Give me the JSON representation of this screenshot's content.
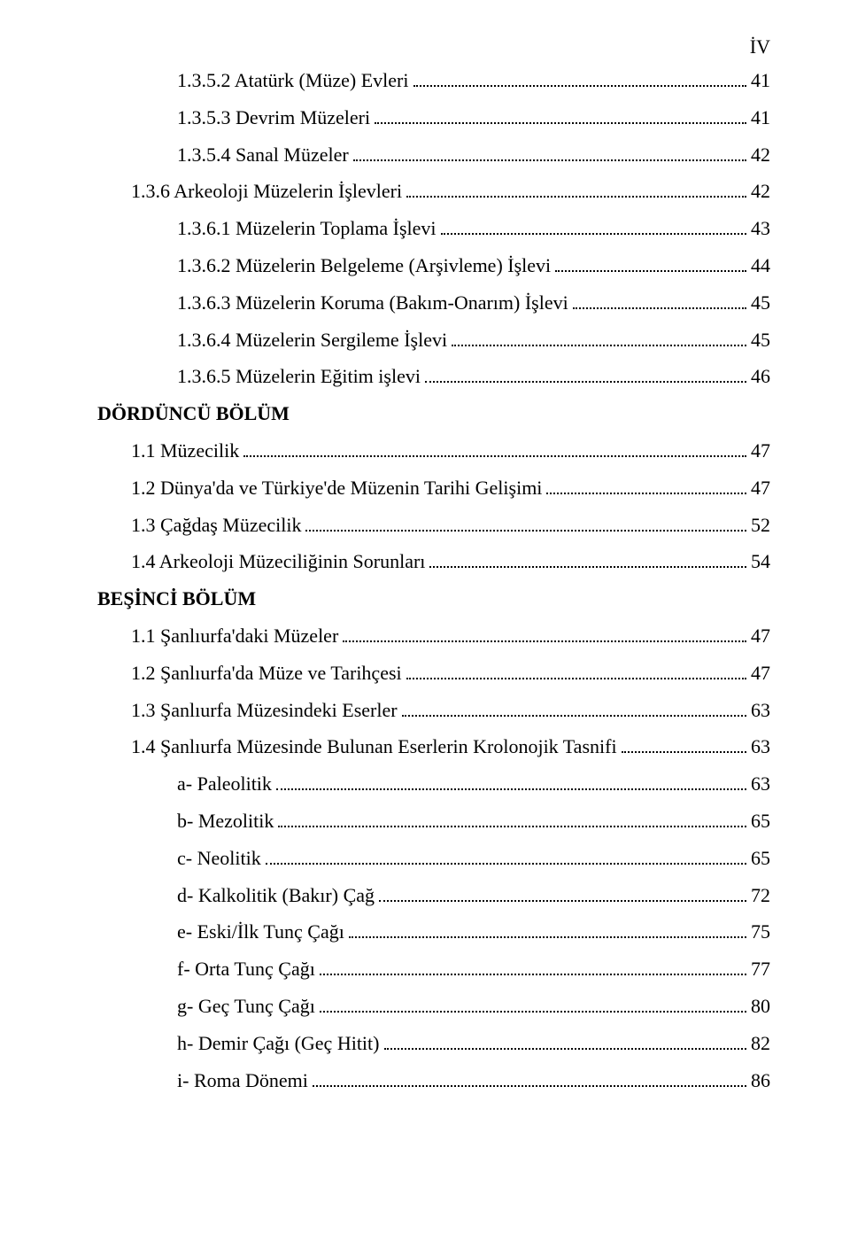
{
  "page_marker": "İV",
  "entries": [
    {
      "indent": 2,
      "label": "1.3.5.2 Atatürk  (Müze) Evleri",
      "page": "41",
      "bold": false,
      "section": false
    },
    {
      "indent": 2,
      "label": "1.3.5.3 Devrim Müzeleri",
      "page": "41",
      "bold": false,
      "section": false
    },
    {
      "indent": 2,
      "label": "1.3.5.4 Sanal Müzeler",
      "page": "42",
      "bold": false,
      "section": false
    },
    {
      "indent": 1,
      "label": "1.3.6 Arkeoloji Müzelerin İşlevleri",
      "page": "42",
      "bold": false,
      "section": false
    },
    {
      "indent": 2,
      "label": "1.3.6.1 Müzelerin Toplama İşlevi",
      "page": "43",
      "bold": false,
      "section": false
    },
    {
      "indent": 2,
      "label": "1.3.6.2 Müzelerin Belgeleme (Arşivleme) İşlevi",
      "page": "44",
      "bold": false,
      "section": false
    },
    {
      "indent": 2,
      "label": "1.3.6.3 Müzelerin Koruma (Bakım-Onarım) İşlevi",
      "page": "45",
      "bold": false,
      "section": false
    },
    {
      "indent": 2,
      "label": "1.3.6.4 Müzelerin Sergileme İşlevi",
      "page": "45",
      "bold": false,
      "section": false
    },
    {
      "indent": 2,
      "label": "1.3.6.5 Müzelerin Eğitim işlevi",
      "page": "46",
      "bold": false,
      "section": false
    },
    {
      "indent": 0,
      "label": "DÖRDÜNCÜ BÖLÜM",
      "page": "",
      "bold": true,
      "section": true
    },
    {
      "indent": 1,
      "label": "1.1 Müzecilik",
      "page": "47",
      "bold": false,
      "section": false
    },
    {
      "indent": 1,
      "label": "1.2 Dünya'da ve Türkiye'de Müzenin Tarihi Gelişimi",
      "page": "47",
      "bold": false,
      "section": false
    },
    {
      "indent": 1,
      "label": "1.3 Çağdaş Müzecilik",
      "page": "52",
      "bold": false,
      "section": false
    },
    {
      "indent": 1,
      "label": "1.4 Arkeoloji Müzeciliğinin Sorunları",
      "page": "54",
      "bold": false,
      "section": false
    },
    {
      "indent": 0,
      "label": "BEŞİNCİ BÖLÜM",
      "page": "",
      "bold": true,
      "section": true
    },
    {
      "indent": 1,
      "label": "1.1 Şanlıurfa'daki Müzeler",
      "page": "47",
      "bold": false,
      "section": false
    },
    {
      "indent": 1,
      "label": "1.2 Şanlıurfa'da Müze ve Tarihçesi",
      "page": "47",
      "bold": false,
      "section": false
    },
    {
      "indent": 1,
      "label": "1.3 Şanlıurfa Müzesindeki Eserler",
      "page": "63",
      "bold": false,
      "section": false
    },
    {
      "indent": 1,
      "label": "1.4 Şanlıurfa Müzesinde Bulunan Eserlerin Krolonojik Tasnifi",
      "page": "63",
      "bold": false,
      "section": false
    },
    {
      "indent": 2,
      "label": "a- Paleolitik",
      "page": "63",
      "bold": false,
      "section": false
    },
    {
      "indent": 2,
      "label": "b- Mezolitik",
      "page": "65",
      "bold": false,
      "section": false
    },
    {
      "indent": 2,
      "label": "c- Neolitik",
      "page": "65",
      "bold": false,
      "section": false
    },
    {
      "indent": 2,
      "label": "d- Kalkolitik  (Bakır) Çağ",
      "page": "72",
      "bold": false,
      "section": false
    },
    {
      "indent": 2,
      "label": "e- Eski/İlk Tunç Çağı",
      "page": "75",
      "bold": false,
      "section": false
    },
    {
      "indent": 2,
      "label": "f- Orta Tunç Çağı",
      "page": "77",
      "bold": false,
      "section": false
    },
    {
      "indent": 2,
      "label": "g- Geç Tunç  Çağı",
      "page": "80",
      "bold": false,
      "section": false
    },
    {
      "indent": 2,
      "label": "h- Demir Çağı (Geç Hitit)",
      "page": "82",
      "bold": false,
      "section": false
    },
    {
      "indent": 2,
      "label": "i- Roma Dönemi",
      "page": "86",
      "bold": false,
      "section": false
    }
  ]
}
